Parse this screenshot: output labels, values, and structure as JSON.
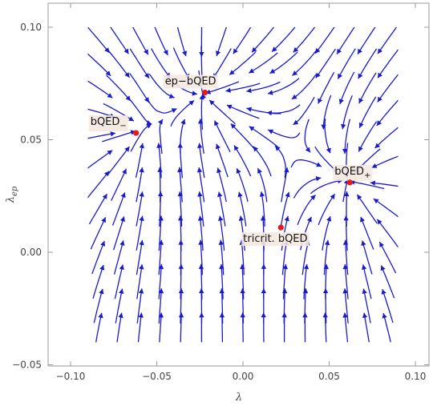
{
  "chart_data": {
    "type": "stream",
    "title": "",
    "xlabel": "λ",
    "ylabel": "λ",
    "ylabel_sub": "ep",
    "xlim": [
      -0.1,
      0.1
    ],
    "ylim": [
      -0.05,
      0.11
    ],
    "x_ticks": [
      -0.1,
      -0.05,
      0.0,
      0.05,
      0.1
    ],
    "x_tick_labels": [
      "−0.10",
      "−0.05",
      "0.00",
      "0.05",
      "0.10"
    ],
    "y_ticks": [
      -0.05,
      0.0,
      0.05,
      0.1
    ],
    "y_tick_labels": [
      "−0.05",
      "0.00",
      "0.05",
      "0.10"
    ],
    "field_region": {
      "x": [
        -0.09,
        0.09
      ],
      "y": [
        -0.04,
        0.1
      ]
    },
    "grid": false,
    "stream_color": "#1a1acc",
    "point_color": "#e8191b",
    "label_bg": "#f5e9e0",
    "fixed_points": [
      {
        "name": "ep-bQED",
        "x": -0.022,
        "y": 0.071,
        "label": "ep−bQED",
        "sub": ""
      },
      {
        "name": "bQED-minus",
        "x": -0.062,
        "y": 0.053,
        "label": "bQED",
        "sub": "−"
      },
      {
        "name": "bQED-plus",
        "x": 0.062,
        "y": 0.031,
        "label": "bQED",
        "sub": "+"
      },
      {
        "name": "tricrit-bQED",
        "x": 0.022,
        "y": 0.011,
        "label": "tricrit. bQED",
        "sub": ""
      }
    ]
  }
}
